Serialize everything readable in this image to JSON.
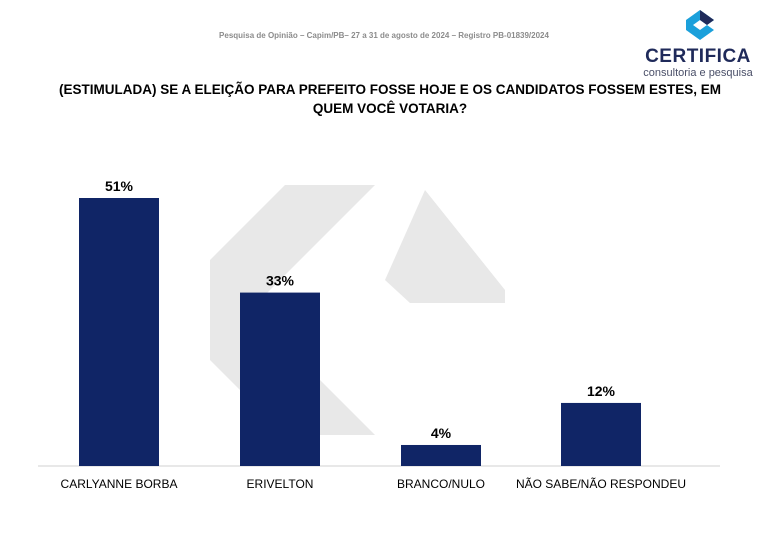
{
  "header": {
    "survey_info": "Pesquisa de Opinião – Capim/PB– 27 a 31 de agosto de 2024 – Registro PB-01839/2024"
  },
  "logo": {
    "name": "CERTIFICA",
    "tagline": "consultoria e pesquisa",
    "icon": "certifica-logo-icon",
    "colors": {
      "primary": "#1f2a5a",
      "accent": "#1ba0db"
    }
  },
  "chart_data": {
    "type": "bar",
    "title": "(ESTIMULADA) SE A ELEIÇÃO PARA PREFEITO FOSSE HOJE E OS CANDIDATOS FOSSEM ESTES, EM QUEM VOCÊ VOTARIA?",
    "categories": [
      "CARLYANNE BORBA",
      "ERIVELTON",
      "BRANCO/NULO",
      "NÃO SABE/NÃO RESPONDEU"
    ],
    "values": [
      51,
      33,
      4,
      12
    ],
    "labels": [
      "51%",
      "33%",
      "4%",
      "12%"
    ],
    "unit": "%",
    "ylim": [
      0,
      51
    ],
    "grid": false,
    "legend": "none",
    "bar_color": "#102566"
  }
}
